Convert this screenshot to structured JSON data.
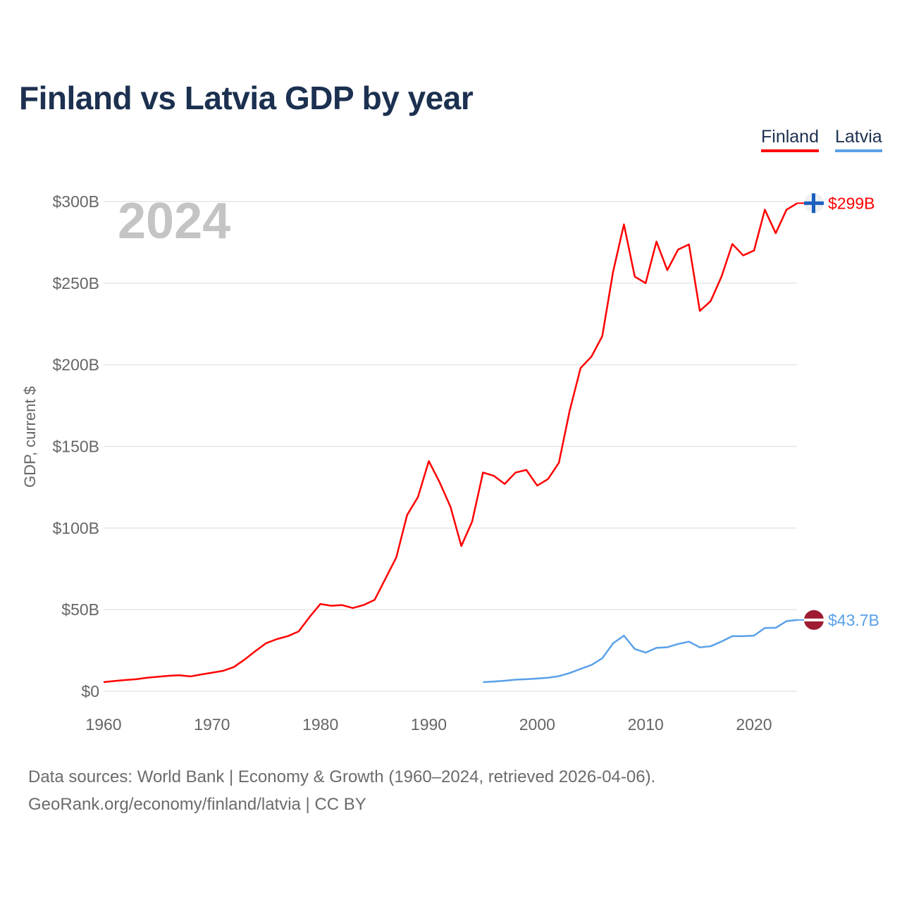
{
  "title": "Finland vs Latvia GDP by year",
  "legend": [
    {
      "label": "Finland",
      "color": "#ff0000"
    },
    {
      "label": "Latvia",
      "color": "#5aa0e8"
    }
  ],
  "footer": {
    "line1": "Data sources: World Bank | Economy & Growth (1960–2024, retrieved 2026-04-06).",
    "line2": "GeoRank.org/economy/finland/latvia | CC BY"
  },
  "chart_data": {
    "type": "line",
    "title": "Finland vs Latvia GDP by year",
    "ylabel": "GDP, current $",
    "xlabel": "",
    "year_watermark": "2024",
    "xlim": [
      1960,
      2024
    ],
    "ylim": [
      0,
      300
    ],
    "y_unit": "billion USD",
    "x_ticks": [
      "1960",
      "1970",
      "1980",
      "1990",
      "2000",
      "2010",
      "2020"
    ],
    "y_ticks": [
      {
        "v": 0,
        "label": "$0"
      },
      {
        "v": 50,
        "label": "$50B"
      },
      {
        "v": 100,
        "label": "$100B"
      },
      {
        "v": 150,
        "label": "$150B"
      },
      {
        "v": 200,
        "label": "$200B"
      },
      {
        "v": 250,
        "label": "$250B"
      },
      {
        "v": 300,
        "label": "$300B"
      }
    ],
    "grid": true,
    "legend_position": "top-right",
    "series": [
      {
        "name": "Finland",
        "color": "#ff0000",
        "end_label": "$299B",
        "flag": "finland",
        "start_year": 1960,
        "values": [
          5.6,
          6.3,
          6.9,
          7.4,
          8.3,
          8.9,
          9.5,
          9.8,
          9.1,
          10.3,
          11.4,
          12.5,
          14.8,
          19.4,
          24.6,
          29.5,
          32.0,
          33.8,
          36.7,
          45.5,
          53.5,
          52.4,
          52.8,
          51.0,
          52.9,
          56.0,
          69,
          82,
          108,
          119,
          141,
          128,
          113,
          89,
          104,
          134,
          132,
          127,
          134,
          135.6,
          126,
          130,
          140,
          172,
          198,
          205,
          217.5,
          257,
          286,
          254,
          250,
          275.5,
          258,
          270.6,
          273.7,
          233,
          239,
          254,
          274,
          267,
          270,
          295,
          280.6,
          295,
          299
        ]
      },
      {
        "name": "Latvia",
        "color": "#5aa0e8",
        "end_label": "$43.7B",
        "flag": "latvia",
        "start_year": 1995,
        "values": [
          5.6,
          6.0,
          6.5,
          7.1,
          7.4,
          7.8,
          8.3,
          9.3,
          11.2,
          13.7,
          16.1,
          20.2,
          29.4,
          34.1,
          25.9,
          23.7,
          26.6,
          27.0,
          29.0,
          30.4,
          26.9,
          27.6,
          30.5,
          33.8,
          33.8,
          34.1,
          38.8,
          38.9,
          43.0,
          43.7
        ]
      }
    ]
  }
}
